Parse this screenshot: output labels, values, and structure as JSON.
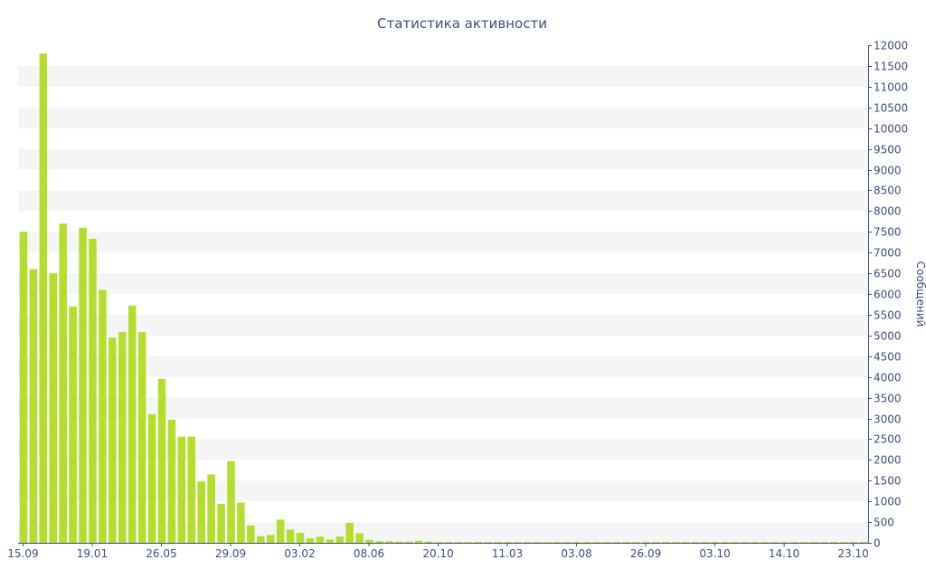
{
  "chart_data": {
    "type": "bar",
    "title": "Статистика активности",
    "xlabel": "",
    "ylabel": "Сообщений",
    "y_axis_side": "right",
    "ylim": [
      0,
      12000
    ],
    "y_ticks": [
      0,
      500,
      1000,
      1500,
      2000,
      2500,
      3000,
      3500,
      4000,
      4500,
      5000,
      5500,
      6000,
      6500,
      7000,
      7500,
      8000,
      8500,
      9000,
      9500,
      10000,
      10500,
      11000,
      11500,
      12000
    ],
    "x_tick_labels": [
      {
        "index": 0,
        "label": "15.09"
      },
      {
        "index": 7,
        "label": "19.01"
      },
      {
        "index": 14,
        "label": "26.05"
      },
      {
        "index": 21,
        "label": "29.09"
      },
      {
        "index": 28,
        "label": "03.02"
      },
      {
        "index": 35,
        "label": "08.06"
      },
      {
        "index": 42,
        "label": "20.10"
      },
      {
        "index": 49,
        "label": "11.03"
      },
      {
        "index": 56,
        "label": "03.08"
      },
      {
        "index": 63,
        "label": "26.09"
      },
      {
        "index": 70,
        "label": "03.10"
      },
      {
        "index": 77,
        "label": "14.10"
      },
      {
        "index": 84,
        "label": "23.10"
      }
    ],
    "values": [
      7500,
      6600,
      11800,
      6500,
      7700,
      5700,
      7600,
      7330,
      6100,
      4950,
      5080,
      5720,
      5080,
      3100,
      3950,
      2970,
      2560,
      2560,
      1480,
      1650,
      940,
      1970,
      970,
      420,
      160,
      190,
      560,
      320,
      240,
      110,
      150,
      80,
      150,
      480,
      230,
      70,
      40,
      40,
      30,
      30,
      50,
      30,
      20,
      20,
      20,
      20,
      20,
      20,
      20,
      20,
      20,
      20,
      20,
      20,
      20,
      20,
      20,
      20,
      20,
      20,
      20,
      20,
      20,
      20,
      20,
      20,
      20,
      20,
      20,
      20,
      20,
      20,
      20,
      20,
      20,
      20,
      20,
      20,
      20,
      20,
      20,
      20,
      20,
      20,
      20,
      20
    ],
    "bar_color": "#b5dd2e",
    "band_color": "#f5f5f5",
    "text_color": "#3f4f7f",
    "grid": "alternating-bands"
  }
}
